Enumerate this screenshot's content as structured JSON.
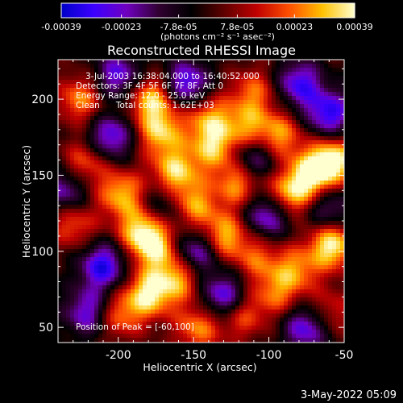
{
  "chart_data": {
    "type": "heatmap",
    "title": "Reconstructed RHESSI Image",
    "xlabel": "Heliocentric X (arcsec)",
    "ylabel": "Heliocentric Y (arcsec)",
    "xlim": [
      -240,
      -50
    ],
    "ylim": [
      40,
      226
    ],
    "x_ticks": [
      "-200",
      "-150",
      "-100",
      "-50"
    ],
    "x_tick_values": [
      -200,
      -150,
      -100,
      -50
    ],
    "y_ticks": [
      "50",
      "100",
      "150",
      "200"
    ],
    "y_tick_values": [
      50,
      100,
      150,
      200
    ],
    "colorbar": {
      "range": [
        -0.00039,
        0.00039
      ],
      "ticks": [
        "-0.00039",
        "-0.00023",
        "-7.8e-05",
        "7.8e-05",
        "0.00023",
        "0.00039"
      ],
      "tick_values": [
        -0.00039,
        -0.00023,
        -7.8e-05,
        7.8e-05,
        0.00023,
        0.00039
      ],
      "unit_label": "(photons cm⁻² s⁻¹ asec⁻²)",
      "colors": [
        "#0000c8",
        "#3c00ff",
        "#7000c0",
        "#300030",
        "#000000",
        "#600000",
        "#c00000",
        "#ff5000",
        "#ffc000",
        "#ffffd0"
      ]
    },
    "info_lines": [
      "3-Jul-2003 16:38:04.000 to 16:40:52.000",
      "Detectors: 3F 4F 5F 6F 7F 8F, Att 0",
      "Energy Range: 12.0 - 25.0 keV",
      "Clean      Total counts: 1.62E+03"
    ],
    "peak_label": "Position of Peak = [-60,100]",
    "peak_position": [
      -60,
      100
    ],
    "blobs": [
      {
        "x": -178,
        "y": 200,
        "v": 0.00034
      },
      {
        "x": -172,
        "y": 178,
        "v": 0.00031
      },
      {
        "x": -162,
        "y": 152,
        "v": 0.00033
      },
      {
        "x": -140,
        "y": 188,
        "v": 0.00026
      },
      {
        "x": -137,
        "y": 168,
        "v": 0.00029
      },
      {
        "x": -115,
        "y": 182,
        "v": 0.00024
      },
      {
        "x": -110,
        "y": 205,
        "v": 0.00022
      },
      {
        "x": -93,
        "y": 176,
        "v": 0.00027
      },
      {
        "x": -225,
        "y": 200,
        "v": 0.00026
      },
      {
        "x": -222,
        "y": 158,
        "v": 0.00023
      },
      {
        "x": -198,
        "y": 138,
        "v": 0.0003
      },
      {
        "x": -185,
        "y": 114,
        "v": 0.00032
      },
      {
        "x": -230,
        "y": 118,
        "v": 0.00022
      },
      {
        "x": -175,
        "y": 102,
        "v": 0.0003
      },
      {
        "x": -150,
        "y": 130,
        "v": 0.00028
      },
      {
        "x": -130,
        "y": 110,
        "v": 0.00032
      },
      {
        "x": -120,
        "y": 145,
        "v": 0.0003
      },
      {
        "x": -88,
        "y": 136,
        "v": 0.00034
      },
      {
        "x": -72,
        "y": 150,
        "v": 0.00036
      },
      {
        "x": -57,
        "y": 160,
        "v": 0.00038
      },
      {
        "x": -58,
        "y": 104,
        "v": 0.00039
      },
      {
        "x": -82,
        "y": 88,
        "v": 0.00024
      },
      {
        "x": -180,
        "y": 72,
        "v": 0.00036
      },
      {
        "x": -160,
        "y": 82,
        "v": 0.00028
      },
      {
        "x": -200,
        "y": 58,
        "v": 0.00024
      },
      {
        "x": -118,
        "y": 58,
        "v": 0.00022
      },
      {
        "x": -95,
        "y": 72,
        "v": 0.00021
      },
      {
        "x": -147,
        "y": 50,
        "v": 0.00026
      },
      {
        "x": -60,
        "y": 60,
        "v": 0.00018
      },
      {
        "x": -108,
        "y": 95,
        "v": 0.0002
      },
      {
        "x": -210,
        "y": 90,
        "v": -0.00034
      },
      {
        "x": -205,
        "y": 175,
        "v": -0.0003
      },
      {
        "x": -200,
        "y": 215,
        "v": -0.00028
      },
      {
        "x": -155,
        "y": 210,
        "v": -0.00032
      },
      {
        "x": -148,
        "y": 100,
        "v": -0.0003
      },
      {
        "x": -100,
        "y": 125,
        "v": -0.00034
      },
      {
        "x": -80,
        "y": 210,
        "v": -0.0003
      },
      {
        "x": -60,
        "y": 190,
        "v": -0.00033
      },
      {
        "x": -110,
        "y": 160,
        "v": -0.00026
      },
      {
        "x": -220,
        "y": 60,
        "v": -0.00028
      },
      {
        "x": -130,
        "y": 70,
        "v": -0.00032
      },
      {
        "x": -75,
        "y": 50,
        "v": -0.0003
      },
      {
        "x": -235,
        "y": 140,
        "v": -0.00025
      },
      {
        "x": -170,
        "y": 130,
        "v": -0.00018
      },
      {
        "x": -60,
        "y": 128,
        "v": -0.00022
      }
    ]
  },
  "footer_date": "3-May-2022 05:09"
}
